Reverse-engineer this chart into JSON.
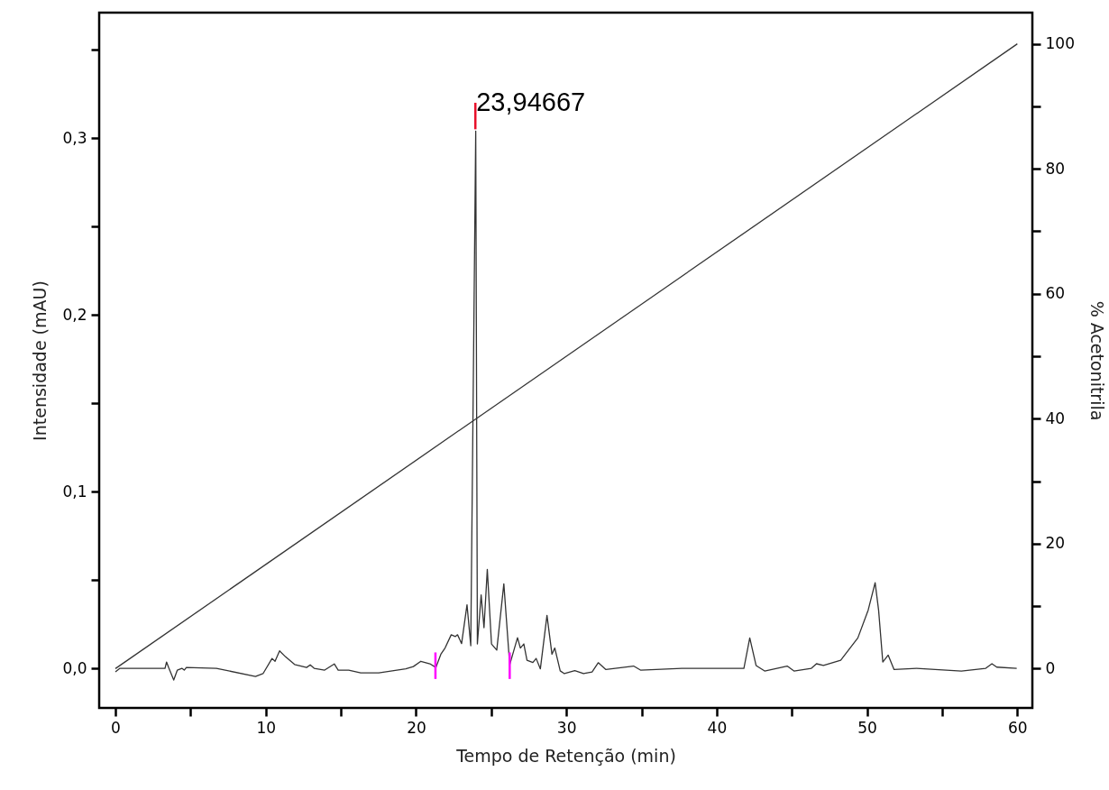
{
  "chart_data": {
    "type": "line",
    "xlabel": "Tempo de Retenção (min)",
    "ylabel": "Intensidade (mAU)",
    "y2label": "% Acetonitrila",
    "xlim": [
      -1.08,
      61.0
    ],
    "xticks": [
      0,
      {
        "value": 5,
        "label": null
      },
      10,
      {
        "value": 15,
        "label": null
      },
      20,
      {
        "value": 25,
        "label": null
      },
      30,
      {
        "value": 35,
        "label": null
      },
      40,
      {
        "value": 45,
        "label": null
      },
      50,
      {
        "value": 55,
        "label": null
      },
      60
    ],
    "ylim": [
      -0.0224,
      0.371
    ],
    "yticks": [
      {
        "value": 0,
        "label": "0,0"
      },
      {
        "value": 0.05,
        "label": null
      },
      {
        "value": 0.1,
        "label": "0,1"
      },
      {
        "value": 0.15,
        "label": null
      },
      {
        "value": 0.2,
        "label": "0,2"
      },
      {
        "value": 0.25,
        "label": null
      },
      {
        "value": 0.3,
        "label": "0,3"
      },
      {
        "value": 0.35,
        "label": null
      }
    ],
    "y2lim": [
      -6.3,
      105
    ],
    "y2ticks": [
      0,
      {
        "value": 10,
        "label": null
      },
      20,
      {
        "value": 30,
        "label": null
      },
      40,
      {
        "value": 50,
        "label": null
      },
      60,
      {
        "value": 70,
        "label": null
      },
      80,
      {
        "value": 90,
        "label": null
      },
      100
    ],
    "grid": false,
    "annotations": [
      {
        "text": "23,94667",
        "x": 23.94667,
        "y": 0.32
      }
    ],
    "series": [
      {
        "type": "line",
        "color": "#333333",
        "x": [
          0,
          0.3,
          3.3,
          3.4,
          3.56,
          3.88,
          4.12,
          4.42,
          4.58,
          4.72,
          6.72,
          9.32,
          9.82,
          10.42,
          10.62,
          10.92,
          11.32,
          11.92,
          12.72,
          12.96,
          13.22,
          13.92,
          14.56,
          14.82,
          15.52,
          16.32,
          17.52,
          19.32,
          19.82,
          20.32,
          20.92,
          21.32,
          21.65,
          21.93,
          22.34,
          22.62,
          22.76,
          23.03,
          23.39,
          23.64,
          23.97,
          24.08,
          24.33,
          24.52,
          24.74,
          25.02,
          25.37,
          25.84,
          26.23,
          26.75,
          26.94,
          27.17,
          27.38,
          27.77,
          27.99,
          28.27,
          28.71,
          29.04,
          29.23,
          29.59,
          29.87,
          30.56,
          31.14,
          31.71,
          32.12,
          32.63,
          34.47,
          34.93,
          37.68,
          39.98,
          41.81,
          42.2,
          42.62,
          43.19,
          44.69,
          45.14,
          46.3,
          46.64,
          47.1,
          48.25,
          49.39,
          50.08,
          50.54,
          50.77,
          51.05,
          51.41,
          51.8,
          53.3,
          56.28,
          57.9,
          58.31,
          58.63,
          59.96
        ],
        "values": [
          -0.002,
          0,
          0,
          0.0036,
          0,
          -0.0066,
          -0.001,
          0,
          -0.001,
          0.0005,
          0,
          -0.0046,
          -0.003,
          0.0056,
          0.004,
          0.0099,
          0.0065,
          0.0022,
          0.0005,
          0.002,
          0,
          -0.001,
          0.0025,
          -0.001,
          -0.001,
          -0.0026,
          -0.0026,
          -0.0003,
          0.001,
          0.004,
          0.0026,
          0.0005,
          0.008,
          0.0115,
          0.019,
          0.018,
          0.019,
          0.014,
          0.036,
          0.0128,
          0.304,
          0.0138,
          0.0415,
          0.023,
          0.056,
          0.0138,
          0.0103,
          0.0478,
          0.002,
          0.0173,
          0.0115,
          0.0138,
          0.0046,
          0.0033,
          0.0056,
          -0.0003,
          0.03,
          0.008,
          0.0115,
          -0.0014,
          -0.003,
          -0.0013,
          -0.003,
          -0.002,
          0.0032,
          -0.0007,
          0.0013,
          -0.001,
          0,
          0,
          0,
          0.0172,
          0.0016,
          -0.0015,
          0.0013,
          -0.0015,
          0,
          0.0026,
          0.0016,
          0.0046,
          0.0172,
          0.033,
          0.0485,
          0.033,
          0.0036,
          0.0075,
          -0.0007,
          0,
          -0.0015,
          0,
          0.0026,
          0.0007,
          0
        ]
      },
      {
        "type": "line",
        "axis": "y2",
        "color": "#333333",
        "x": [
          0,
          60
        ],
        "values": [
          0,
          100
        ]
      },
      {
        "type": "line",
        "color": "#e8102a",
        "x": [
          23.94667,
          23.94667
        ],
        "values": [
          0.305,
          0.32
        ]
      },
      {
        "type": "line",
        "color": "#ff00ff",
        "x": [
          21.29,
          21.29
        ],
        "values": [
          -0.006,
          0.009
        ]
      },
      {
        "type": "line",
        "color": "#ff00ff",
        "x": [
          26.23,
          26.23
        ],
        "values": [
          -0.006,
          0.009
        ]
      }
    ]
  }
}
